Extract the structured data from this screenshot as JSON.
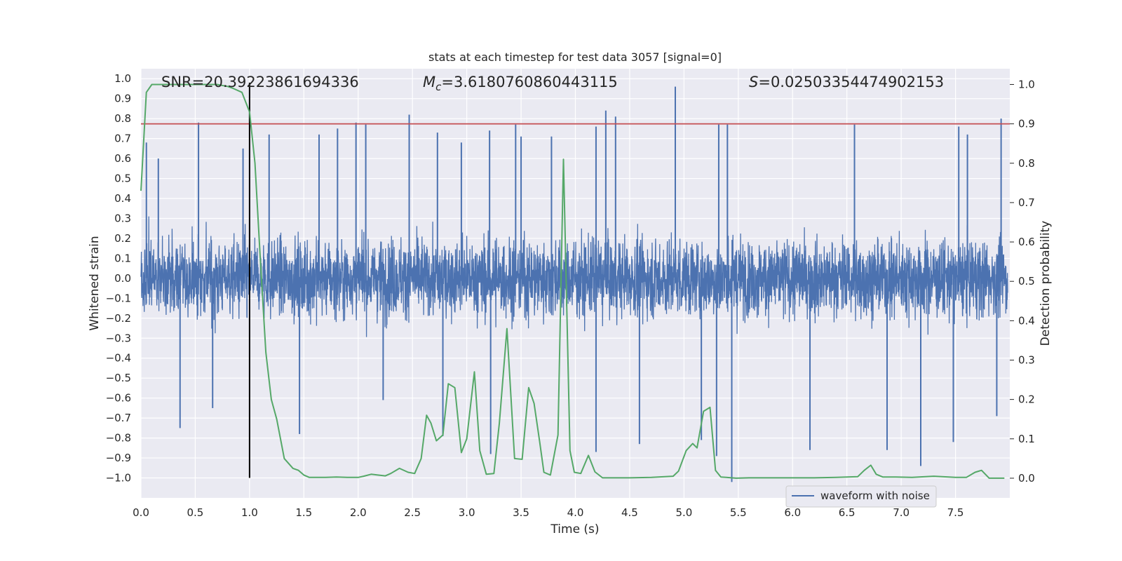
{
  "chart_data": {
    "type": "line",
    "title": "stats at each timestep for test data 3057 [signal=0]",
    "xlabel": "Time (s)",
    "ylabel_left": "Whitened strain",
    "ylabel_right": "Detection probability",
    "xlim": [
      0.0,
      8.0
    ],
    "ylim_left": [
      -1.1,
      1.05
    ],
    "ylim_right": [
      -0.05,
      1.04
    ],
    "x_ticks": [
      "0.0",
      "0.5",
      "1.0",
      "1.5",
      "2.0",
      "2.5",
      "3.0",
      "3.5",
      "4.0",
      "4.5",
      "5.0",
      "5.5",
      "6.0",
      "6.5",
      "7.0",
      "7.5"
    ],
    "y_left_ticks": [
      "1.0",
      "0.9",
      "0.8",
      "0.7",
      "0.6",
      "0.5",
      "0.4",
      "0.3",
      "0.2",
      "0.1",
      "0.0",
      "-0.1",
      "-0.2",
      "-0.3",
      "-0.4",
      "-0.5",
      "-0.6",
      "-0.7",
      "-0.8",
      "-0.9",
      "-1.0"
    ],
    "y_right_ticks": [
      "1.0",
      "0.9",
      "0.8",
      "0.7",
      "0.6",
      "0.5",
      "0.4",
      "0.3",
      "0.2",
      "0.1",
      "0.0"
    ],
    "grid": true,
    "legend_position": "lower-right",
    "annotations": {
      "snr": "SNR=20.39223861694336",
      "mc_symbol": "M",
      "mc_sub": "c",
      "mc_value": "=3.6180760860443115",
      "s_symbol": "S",
      "s_value": "=0.02503354474902153"
    },
    "threshold": {
      "axis": "right",
      "value": 0.9,
      "color": "#c44e52"
    },
    "marker_line": {
      "x": 1.0,
      "y_from": -1.0,
      "y_to": 0.98,
      "color": "#000000"
    },
    "series": [
      {
        "name": "waveform with noise",
        "axis": "left",
        "color": "#4c72b0",
        "envelope_note": "dense noise time series; typical band about -0.45 to 0.45 with spikes",
        "spikes_up": [
          [
            0.05,
            0.68
          ],
          [
            0.16,
            0.6
          ],
          [
            0.53,
            0.78
          ],
          [
            0.94,
            0.65
          ],
          [
            1.18,
            0.72
          ],
          [
            1.64,
            0.72
          ],
          [
            1.81,
            0.75
          ],
          [
            1.98,
            0.78
          ],
          [
            2.07,
            0.77
          ],
          [
            2.47,
            0.82
          ],
          [
            2.73,
            0.73
          ],
          [
            2.95,
            0.68
          ],
          [
            3.21,
            0.74
          ],
          [
            3.45,
            0.77
          ],
          [
            3.5,
            0.71
          ],
          [
            3.78,
            0.71
          ],
          [
            4.19,
            0.76
          ],
          [
            4.28,
            0.84
          ],
          [
            4.37,
            0.81
          ],
          [
            4.92,
            0.96
          ],
          [
            5.32,
            0.77
          ],
          [
            5.4,
            0.77
          ],
          [
            6.57,
            0.77
          ],
          [
            7.53,
            0.76
          ],
          [
            7.61,
            0.72
          ],
          [
            7.92,
            0.8
          ]
        ],
        "spikes_down": [
          [
            0.36,
            -0.75
          ],
          [
            0.66,
            -0.65
          ],
          [
            1.46,
            -0.78
          ],
          [
            2.23,
            -0.61
          ],
          [
            2.78,
            -0.79
          ],
          [
            3.22,
            -0.88
          ],
          [
            4.19,
            -0.87
          ],
          [
            4.59,
            -0.83
          ],
          [
            5.16,
            -0.81
          ],
          [
            5.3,
            -0.89
          ],
          [
            5.44,
            -1.02
          ],
          [
            6.16,
            -0.86
          ],
          [
            6.87,
            -0.86
          ],
          [
            7.18,
            -0.94
          ],
          [
            7.48,
            -0.82
          ],
          [
            7.88,
            -0.69
          ]
        ]
      },
      {
        "name": "",
        "axis": "right",
        "color": "#55a868",
        "x": [
          0.0,
          0.05,
          0.1,
          0.2,
          0.3,
          0.4,
          0.5,
          0.6,
          0.7,
          0.8,
          0.85,
          0.93,
          1.0,
          1.05,
          1.1,
          1.15,
          1.2,
          1.25,
          1.32,
          1.4,
          1.45,
          1.5,
          1.55,
          1.6,
          1.7,
          1.8,
          1.9,
          2.0,
          2.05,
          2.12,
          2.18,
          2.25,
          2.3,
          2.38,
          2.46,
          2.52,
          2.58,
          2.63,
          2.67,
          2.72,
          2.78,
          2.83,
          2.89,
          2.95,
          3.0,
          3.07,
          3.12,
          3.18,
          3.25,
          3.3,
          3.37,
          3.44,
          3.51,
          3.57,
          3.62,
          3.67,
          3.71,
          3.77,
          3.84,
          3.89,
          3.95,
          3.99,
          4.05,
          4.12,
          4.18,
          4.25,
          4.35,
          4.5,
          4.7,
          4.9,
          4.95,
          5.02,
          5.08,
          5.12,
          5.18,
          5.24,
          5.29,
          5.34,
          5.39,
          5.48,
          5.6,
          5.8,
          6.0,
          6.2,
          6.4,
          6.6,
          6.66,
          6.72,
          6.77,
          6.83,
          6.95,
          7.1,
          7.3,
          7.5,
          7.6,
          7.68,
          7.74,
          7.81,
          7.85,
          7.95
        ],
        "y": [
          0.73,
          0.98,
          1.0,
          1.0,
          1.0,
          1.0,
          1.0,
          1.0,
          1.0,
          0.995,
          0.99,
          0.98,
          0.93,
          0.8,
          0.55,
          0.32,
          0.2,
          0.15,
          0.05,
          0.025,
          0.02,
          0.008,
          0.002,
          0.002,
          0.002,
          0.003,
          0.002,
          0.002,
          0.005,
          0.01,
          0.008,
          0.006,
          0.012,
          0.025,
          0.015,
          0.012,
          0.05,
          0.16,
          0.14,
          0.095,
          0.11,
          0.24,
          0.23,
          0.065,
          0.1,
          0.27,
          0.07,
          0.01,
          0.012,
          0.14,
          0.38,
          0.05,
          0.048,
          0.23,
          0.19,
          0.095,
          0.015,
          0.008,
          0.11,
          0.81,
          0.07,
          0.015,
          0.012,
          0.058,
          0.016,
          0.001,
          0.001,
          0.001,
          0.002,
          0.005,
          0.018,
          0.07,
          0.088,
          0.077,
          0.17,
          0.18,
          0.02,
          0.003,
          0.002,
          0.0,
          0.001,
          0.001,
          0.001,
          0.001,
          0.002,
          0.004,
          0.02,
          0.033,
          0.01,
          0.003,
          0.003,
          0.002,
          0.005,
          0.002,
          0.002,
          0.015,
          0.02,
          0.0,
          0.0,
          0.0
        ]
      }
    ]
  }
}
